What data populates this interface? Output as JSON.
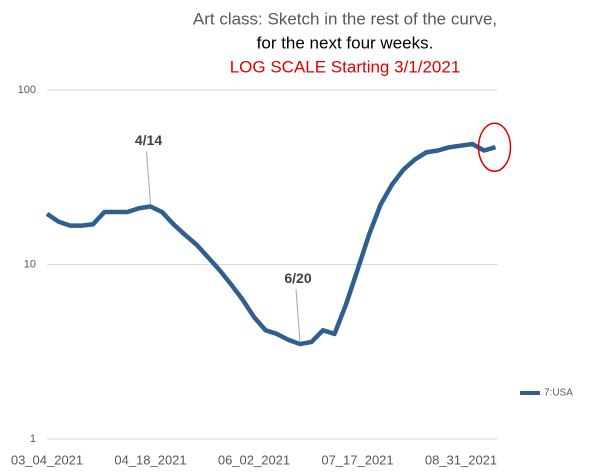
{
  "chart_data": {
    "type": "line",
    "title": [
      "Art class:  Sketch in the rest of the curve,",
      "for the next four weeks.",
      "LOG SCALE Starting 3/1/2021"
    ],
    "title_colors": [
      "#595959",
      "#000000",
      "#e00000"
    ],
    "yscale": "log",
    "ylim": [
      1,
      100
    ],
    "yticks": [
      1,
      10,
      100
    ],
    "grid": true,
    "legend": "right",
    "categories": [
      "03_04_2021",
      null,
      null,
      null,
      null,
      null,
      null,
      null,
      null,
      "04_18_2021",
      null,
      null,
      null,
      null,
      null,
      null,
      null,
      null,
      "06_02_2021",
      null,
      null,
      null,
      null,
      null,
      null,
      null,
      null,
      "07_17_2021",
      null,
      null,
      null,
      null,
      null,
      null,
      null,
      null,
      "08_31_2021",
      null,
      null,
      null
    ],
    "series": [
      {
        "name": "7:USA",
        "color": "#2e5f8f",
        "values": [
          19.5,
          17.6,
          16.7,
          16.7,
          17,
          20,
          20,
          20,
          21,
          21.5,
          20,
          17,
          14.8,
          13,
          11,
          9.3,
          7.7,
          6.3,
          5,
          4.2,
          4,
          3.7,
          3.5,
          3.6,
          4.2,
          4,
          5.9,
          9.3,
          14.8,
          22,
          28.7,
          35,
          40,
          44,
          45,
          47,
          48,
          49,
          45,
          47
        ]
      }
    ],
    "annotations": [
      {
        "text": "4/14",
        "point": 9
      },
      {
        "text": "6/20",
        "point": 22
      }
    ]
  }
}
